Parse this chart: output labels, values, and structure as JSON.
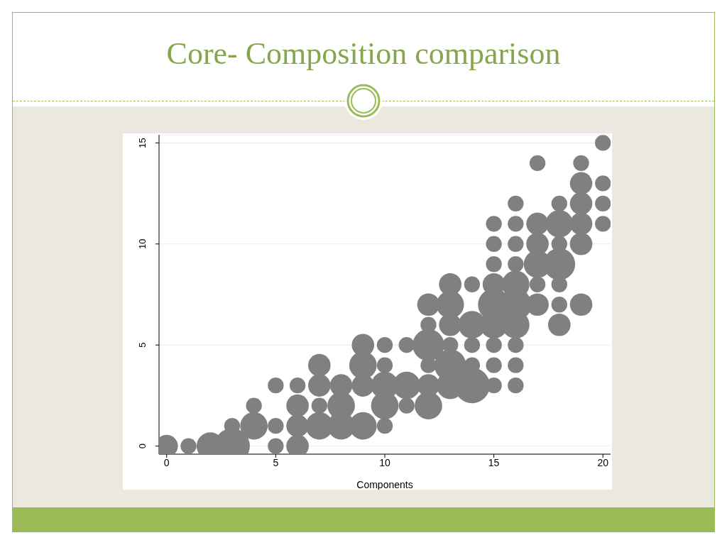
{
  "chart_data": {
    "type": "bubble",
    "title": "Core- Composition comparison",
    "xlabel": "Components",
    "xlim": [
      -0.35,
      20.35
    ],
    "ylim": [
      -0.4,
      15.4
    ],
    "xticks": [
      0,
      5,
      10,
      15,
      20
    ],
    "yticks": [
      0,
      5,
      10,
      15
    ],
    "grid": "y",
    "color": "#808080",
    "x": [
      0,
      1,
      2,
      3,
      3,
      4,
      4,
      5,
      5,
      5,
      6,
      6,
      6,
      6,
      7,
      7,
      7,
      7,
      8,
      8,
      8,
      9,
      9,
      9,
      9,
      10,
      10,
      10,
      10,
      10,
      11,
      11,
      11,
      12,
      12,
      12,
      12,
      12,
      12,
      13,
      13,
      13,
      13,
      13,
      13,
      14,
      14,
      14,
      14,
      14,
      15,
      15,
      15,
      15,
      15,
      15,
      15,
      15,
      15,
      16,
      16,
      16,
      16,
      16,
      16,
      16,
      16,
      16,
      16,
      17,
      17,
      17,
      17,
      17,
      17,
      18,
      18,
      18,
      18,
      18,
      18,
      18,
      19,
      19,
      19,
      19,
      19,
      19,
      20,
      20,
      20,
      20
    ],
    "values": [
      0,
      0,
      0,
      0,
      1,
      1,
      2,
      0,
      1,
      3,
      0,
      1,
      2,
      3,
      1,
      2,
      3,
      4,
      1,
      2,
      3,
      1,
      3,
      4,
      5,
      1,
      2,
      3,
      4,
      5,
      2,
      3,
      5,
      2,
      3,
      4,
      5,
      6,
      7,
      3,
      4,
      5,
      6,
      7,
      8,
      3,
      4,
      5,
      6,
      8,
      3,
      4,
      5,
      6,
      7,
      8,
      9,
      10,
      11,
      3,
      4,
      5,
      6,
      7,
      8,
      9,
      10,
      11,
      12,
      7,
      8,
      9,
      10,
      11,
      14,
      6,
      7,
      8,
      9,
      10,
      11,
      12,
      7,
      10,
      11,
      12,
      13,
      14,
      11,
      12,
      13,
      15
    ],
    "sizes": [
      0.4,
      0.2,
      0.6,
      1,
      0.2,
      0.6,
      0.2,
      0.2,
      0.2,
      0.2,
      0.4,
      0.4,
      0.4,
      0.2,
      0.6,
      0.2,
      0.4,
      0.4,
      0.6,
      0.6,
      0.4,
      0.6,
      0.4,
      0.6,
      0.4,
      0.2,
      0.6,
      0.6,
      0.2,
      0.2,
      0.2,
      0.6,
      0.2,
      0.6,
      0.4,
      0.2,
      0.8,
      0.2,
      0.4,
      0.6,
      0.8,
      0.2,
      0.4,
      0.6,
      0.4,
      1,
      0.2,
      0.2,
      0.6,
      0.2,
      0.2,
      0.2,
      0.2,
      0.6,
      0.8,
      0.4,
      0.2,
      0.2,
      0.2,
      0.2,
      0.2,
      0.2,
      0.6,
      0.8,
      0.6,
      0.2,
      0.2,
      0.2,
      0.2,
      0.4,
      0.2,
      0.6,
      0.4,
      0.4,
      0.2,
      0.4,
      0.2,
      0.2,
      0.8,
      0.2,
      0.6,
      0.2,
      0.4,
      0.4,
      0.4,
      0.4,
      0.4,
      0.2,
      0.2,
      0.2,
      0.2,
      0.2
    ]
  }
}
